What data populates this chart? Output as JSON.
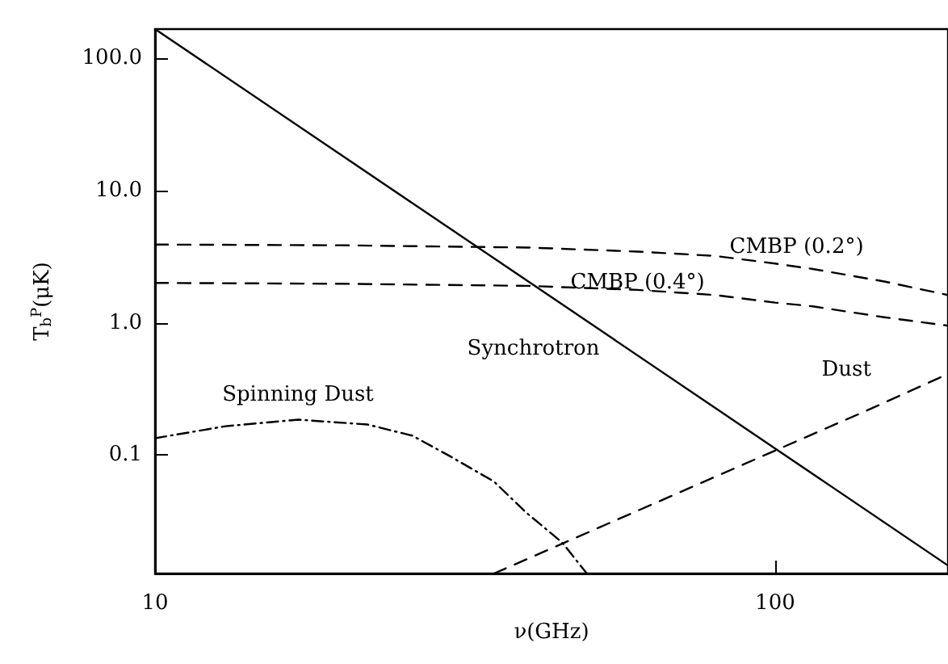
{
  "chart_data": {
    "type": "line",
    "xlabel": "ν(GHz)",
    "ylabel": "T$_{b}$$^{P}$(μK)",
    "log": "xy",
    "xlim": [
      10,
      190
    ],
    "ylim": [
      0.0127,
      166
    ],
    "xticks": [
      10,
      100
    ],
    "yticks": [
      {
        "value": 0.1,
        "label": "0.1"
      },
      {
        "value": 1,
        "label": "1.0"
      },
      {
        "value": 10,
        "label": "10.0"
      },
      {
        "value": 100,
        "label": "100.0"
      }
    ],
    "grid": false,
    "marker": "none",
    "series": [
      {
        "name": "Synchrotron",
        "color": "#000000",
        "line_style": "solid",
        "x": [
          10,
          55,
          100,
          190
        ],
        "values": [
          166,
          0.746,
          0.112,
          0.0146
        ]
      },
      {
        "name": "CMBP (0.2°)",
        "color": "#000000",
        "line_style": "dashed",
        "x": [
          10,
          20,
          40,
          60,
          80,
          100,
          115,
          150,
          190
        ],
        "values": [
          3.9,
          3.85,
          3.7,
          3.45,
          3.2,
          2.8,
          2.55,
          2.05,
          1.62
        ]
      },
      {
        "name": "CMBP (0.4°)",
        "color": "#000000",
        "line_style": "dashed",
        "x": [
          10,
          20,
          40,
          60,
          80,
          100,
          115,
          150,
          190
        ],
        "values": [
          2.0,
          1.97,
          1.9,
          1.77,
          1.62,
          1.42,
          1.33,
          1.1,
          0.95
        ]
      },
      {
        "name": "Dust",
        "color": "#000000",
        "line_style": "dashed",
        "x": [
          35.2,
          100,
          140,
          190
        ],
        "values": [
          0.0127,
          0.108,
          0.215,
          0.41
        ]
      },
      {
        "name": "Spinning Dust",
        "color": "#000000",
        "line_style": "dashdot",
        "x": [
          10,
          13,
          17,
          22,
          26,
          30,
          35.2,
          39.6,
          45.4,
          49.7
        ],
        "values": [
          0.134,
          0.165,
          0.185,
          0.17,
          0.14,
          0.097,
          0.063,
          0.037,
          0.0217,
          0.0127
        ]
      }
    ]
  }
}
